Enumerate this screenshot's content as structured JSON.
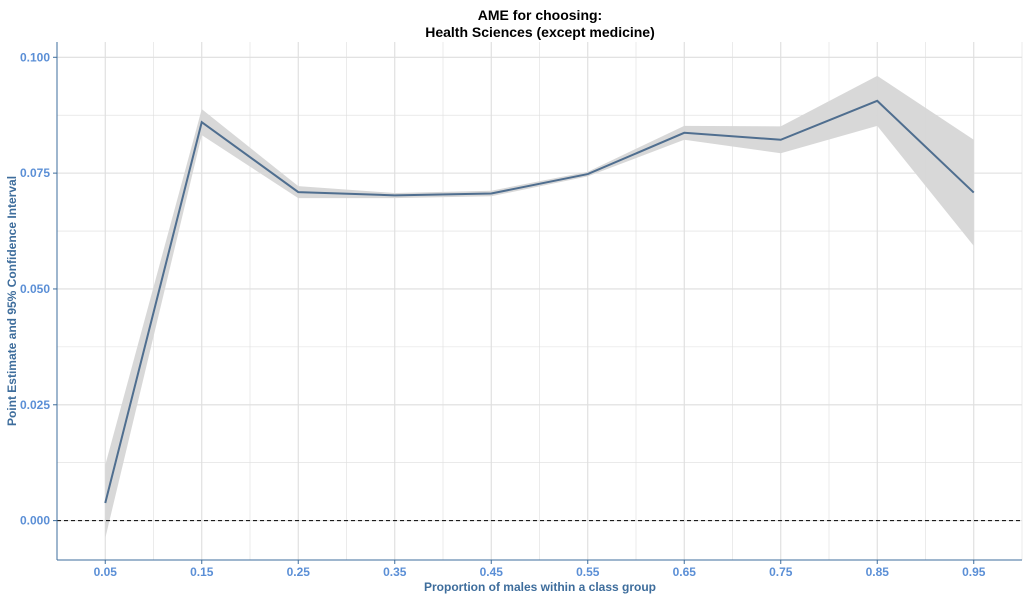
{
  "chart_data": {
    "type": "line",
    "title_line1": "AME for choosing:",
    "title_line2": "Health Sciences (except medicine)",
    "xlabel": "Proportion of males within a class group",
    "ylabel": "Point Estimate and 95% Confidence Interval",
    "x_ticks": [
      "0.05",
      "0.15",
      "0.25",
      "0.35",
      "0.45",
      "0.55",
      "0.65",
      "0.75",
      "0.85",
      "0.95"
    ],
    "y_ticks": [
      "0.000",
      "0.025",
      "0.050",
      "0.075",
      "0.100"
    ],
    "xlim": [
      0.0,
      1.0
    ],
    "ylim": [
      -0.0085,
      0.1033
    ],
    "grid": true,
    "reference_line": {
      "y": 0.0,
      "style": "dashed"
    },
    "series": [
      {
        "x": [
          0.05,
          0.15,
          0.25,
          0.35,
          0.45,
          0.55,
          0.65,
          0.75,
          0.85,
          0.95
        ],
        "y": [
          0.0038,
          0.086,
          0.0709,
          0.0702,
          0.0706,
          0.0748,
          0.0837,
          0.0822,
          0.0906,
          0.0708
        ],
        "lower": [
          -0.0038,
          0.0832,
          0.0696,
          0.0696,
          0.07,
          0.0743,
          0.0822,
          0.0793,
          0.0852,
          0.0593
        ],
        "upper": [
          0.012,
          0.0888,
          0.0722,
          0.0707,
          0.0712,
          0.0753,
          0.0852,
          0.0851,
          0.096,
          0.0822
        ]
      }
    ],
    "colors": {
      "line": "#4f6e8f",
      "band": "#d6d6d6",
      "grid": "#dedede",
      "axis": "#3e6d9c",
      "tick_text": "#5b8fd6"
    }
  }
}
